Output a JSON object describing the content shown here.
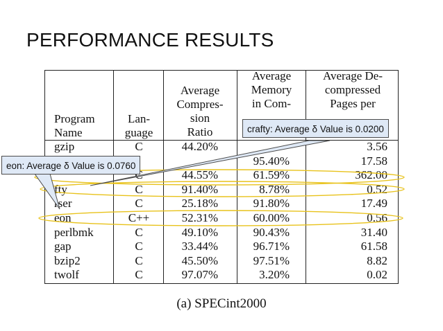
{
  "slide": {
    "title": "PERFORMANCE RESULTS",
    "caption": "(a) SPECint2000"
  },
  "table": {
    "headers": {
      "program": "Program\nName",
      "language": "Lan-\nguage",
      "ratio": "Average\nCompres-\nsion\nRatio",
      "memory": "Average\nMemory\nin Com-",
      "pages": "Average De-\ncompressed\nPages per"
    },
    "rows": [
      {
        "program": "gzip",
        "language": "C",
        "ratio": "44.20%",
        "memory": "",
        "pages": "3.56"
      },
      {
        "program": "",
        "language": "",
        "ratio": "",
        "memory": "95.40%",
        "pages": "17.58"
      },
      {
        "program": "",
        "language": "C",
        "ratio": "44.55%",
        "memory": "61.59%",
        "pages": "362.00"
      },
      {
        "program": "fty",
        "language": "C",
        "ratio": "91.40%",
        "memory": "8.78%",
        "pages": "0.52"
      },
      {
        "program": "rser",
        "language": "C",
        "ratio": "25.18%",
        "memory": "91.80%",
        "pages": "17.49"
      },
      {
        "program": "eon",
        "language": "C++",
        "ratio": "52.31%",
        "memory": "60.00%",
        "pages": "0.56"
      },
      {
        "program": "perlbmk",
        "language": "C",
        "ratio": "49.10%",
        "memory": "90.43%",
        "pages": "31.40"
      },
      {
        "program": "gap",
        "language": "C",
        "ratio": "33.44%",
        "memory": "96.71%",
        "pages": "61.58"
      },
      {
        "program": "bzip2",
        "language": "C",
        "ratio": "45.50%",
        "memory": "97.51%",
        "pages": "8.82"
      },
      {
        "program": "twolf",
        "language": "C",
        "ratio": "97.07%",
        "memory": "3.20%",
        "pages": "0.02"
      }
    ]
  },
  "callouts": {
    "crafty": "crafty: Average δ Value is 0.0200",
    "eon": "eon: Average δ Value is 0.0760"
  },
  "colors": {
    "highlight_ellipse": "#e8c21a",
    "callout_fill": "#dfe9f6",
    "callout_border": "#4a4a4a"
  }
}
